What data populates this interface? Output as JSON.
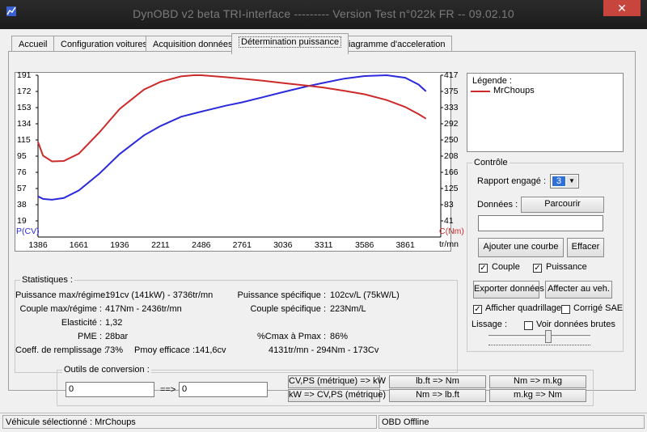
{
  "title": "DynOBD v2 beta TRI-interface --------- Version Test n°022k FR -- 09.02.10",
  "close_label": "✕",
  "tabs": [
    {
      "label": "Accueil"
    },
    {
      "label": "Configuration voitures"
    },
    {
      "label": "Acquisition données"
    },
    {
      "label": "Détermination puissance"
    },
    {
      "label": "Diagramme d'acceleration"
    }
  ],
  "chart": {
    "left_axis_label": "P(CV)",
    "right_axis_label": "C(Nm)",
    "x_unit": "tr/mn",
    "left_ticks": [
      "191",
      "172",
      "153",
      "134",
      "115",
      "95",
      "76",
      "57",
      "38",
      "19"
    ],
    "right_ticks": [
      "417",
      "375",
      "333",
      "292",
      "250",
      "208",
      "166",
      "125",
      "83",
      "41"
    ],
    "x_ticks": [
      "1386",
      "1661",
      "1936",
      "2211",
      "2486",
      "2761",
      "3036",
      "3311",
      "3586",
      "3861"
    ]
  },
  "chart_data": {
    "type": "line",
    "xlabel": "tr/mn",
    "ylabel": "P(CV)",
    "y2label": "C(Nm)",
    "xlim": [
      1386,
      4100
    ],
    "ylim": [
      0,
      191
    ],
    "y2lim": [
      0,
      417
    ],
    "grid": false,
    "series": [
      {
        "axis": "left",
        "color": "#2a2adc",
        "x": [
          1386,
          1420,
          1480,
          1560,
          1661,
          1800,
          1936,
          2100,
          2211,
          2350,
          2486,
          2650,
          2761,
          2900,
          3036,
          3200,
          3311,
          3450,
          3586,
          3736,
          3861,
          3950,
          4000
        ],
        "y": [
          48,
          45,
          44,
          46,
          55,
          75,
          98,
          120,
          131,
          142,
          148,
          155,
          159,
          165,
          171,
          178,
          182,
          187,
          190,
          191,
          188,
          180,
          172
        ]
      },
      {
        "axis": "right",
        "color": "#cc2a2a",
        "x": [
          1386,
          1420,
          1480,
          1560,
          1661,
          1800,
          1936,
          2100,
          2211,
          2350,
          2436,
          2486,
          2650,
          2761,
          2900,
          3036,
          3200,
          3311,
          3450,
          3586,
          3736,
          3861,
          3950,
          4000
        ],
        "y": [
          245,
          210,
          195,
          196,
          215,
          270,
          330,
          380,
          400,
          414,
          417,
          417,
          412,
          408,
          403,
          397,
          390,
          385,
          377,
          368,
          353,
          335,
          317,
          305
        ]
      }
    ]
  },
  "legend": {
    "title": "Légende :",
    "entries": [
      {
        "name": "MrChoups",
        "color": "#cc2a2a"
      }
    ]
  },
  "controle": {
    "label": "Contrôle",
    "rapport_label": "Rapport engagé :",
    "rapport_value": "3",
    "donnees_label": "Données :",
    "parcourir": "Parcourir",
    "file_value": "",
    "ajouter": "Ajouter une courbe",
    "effacer": "Effacer",
    "couple": "Couple",
    "puissance": "Puissance",
    "exporter": "Exporter données",
    "affecter": "Affecter au veh.",
    "quadrillage": "Afficher quadrillage",
    "sae": "Corrigé SAE",
    "lissage": "Lissage :",
    "brutes": "Voir données brutes"
  },
  "stats": {
    "label": "Statistiques :",
    "puissance_max_label": "Puissance max/régime :",
    "puissance_max_value": "191cv (141kW) - 3736tr/mn",
    "couple_max_label": "Couple max/régime :",
    "couple_max_value": "417Nm - 2436tr/mn",
    "elasticite_label": "Elasticité :",
    "elasticite_value": "1,32",
    "pme_label": "PME :",
    "pme_value": "28bar",
    "coeff_label": "Coeff. de remplissage :",
    "coeff_value": "73%",
    "pmoy_label": "Pmoy efficace :",
    "pmoy_value": "141,6cv",
    "p_spec_label": "Puissance spécifique :",
    "p_spec_value": "102cv/L (75kW/L)",
    "c_spec_label": "Couple spécifique :",
    "c_spec_value": "223Nm/L",
    "ratio_label": "%Cmax à Pmax :",
    "ratio_value": "86%",
    "ratio_detail": "4131tr/mn - 294Nm - 173Cv"
  },
  "outils": {
    "label": "Outils de conversion :",
    "input_value": "0",
    "arrow": "==>",
    "output_value": "0",
    "cv_kw": "CV,PS (métrique) => kW",
    "kw_cv": "kW => CV,PS (métrique)",
    "lbft_nm": "lb.ft => Nm",
    "nm_lbft": "Nm => lb.ft",
    "nm_mkg": "Nm => m.kg",
    "mkg_nm": "m.kg => Nm"
  },
  "status": {
    "vehicle": "Véhicule sélectionné : MrChoups",
    "obd": "OBD Offline"
  }
}
